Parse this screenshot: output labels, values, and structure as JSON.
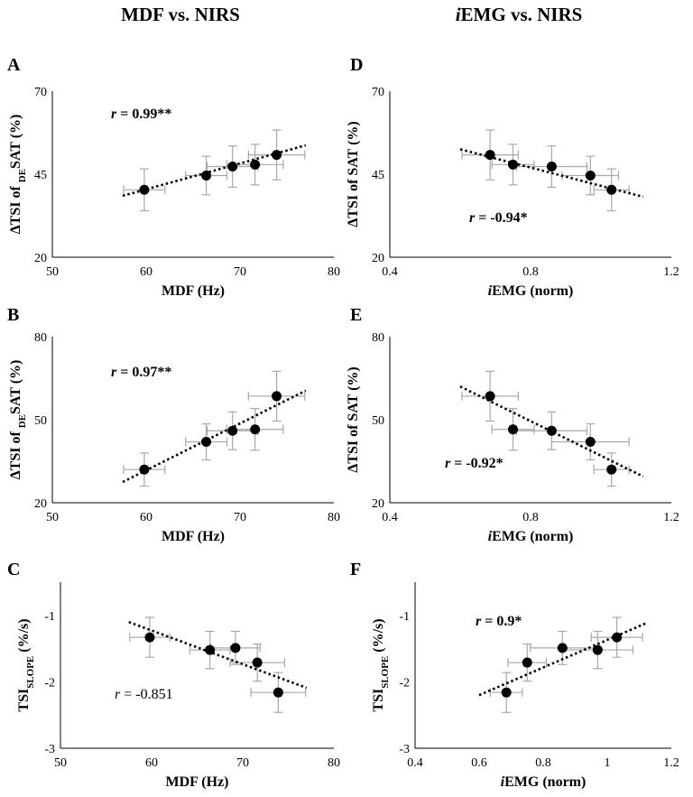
{
  "figure": {
    "col_titles": [
      {
        "text": "MDF vs. NIRS",
        "italic_prefix": ""
      },
      {
        "text": "EMG vs. NIRS",
        "italic_prefix": "i"
      }
    ]
  },
  "chart_data": [
    {
      "panel": "A",
      "type": "scatter",
      "x": [
        59.8,
        66.4,
        69.2,
        71.6,
        73.9
      ],
      "y": [
        40.3,
        44.6,
        47.3,
        47.9,
        50.8
      ],
      "xerr": [
        2.2,
        2.2,
        2.7,
        3.0,
        3.0
      ],
      "yerr": [
        6.3,
        5.8,
        6.2,
        6.1,
        7.5
      ],
      "xlim": [
        50,
        80
      ],
      "ylim": [
        20,
        70
      ],
      "xticks": [
        "50",
        "60",
        "70",
        "80"
      ],
      "yticks": [
        "20",
        "45",
        "70"
      ],
      "xlabel": {
        "italic_prefix": "",
        "text": "MDF (Hz)"
      },
      "ylabel": {
        "pre": "ΔTSI of ",
        "sub": "DE",
        "post": "SAT (%)"
      },
      "trend": {
        "x": [
          57.5,
          77
        ],
        "y": [
          38.5,
          53.7
        ]
      },
      "r": {
        "italic": "r",
        "text": " = 0.99**",
        "bold": true
      }
    },
    {
      "panel": "D",
      "type": "scatter",
      "x": [
        0.685,
        0.75,
        0.86,
        0.97,
        1.03
      ],
      "y": [
        50.8,
        47.9,
        47.3,
        44.6,
        40.3
      ],
      "xerr": [
        0.08,
        0.06,
        0.1,
        0.08,
        0.05
      ],
      "yerr": [
        7.5,
        6.1,
        6.2,
        5.8,
        6.3
      ],
      "xlim": [
        0.4,
        1.2
      ],
      "ylim": [
        20,
        70
      ],
      "xticks": [
        "0.4",
        "0.8",
        "1.2"
      ],
      "yticks": [
        "20",
        "45",
        "70"
      ],
      "xlabel": {
        "italic_prefix": "i",
        "text": "EMG (norm)"
      },
      "ylabel": {
        "pre": "ΔTSI of SAT (%)",
        "sub": "",
        "post": ""
      },
      "trend": {
        "x": [
          0.6,
          1.12
        ],
        "y": [
          52.5,
          38.2
        ]
      },
      "r": {
        "italic": "r",
        "text": " = -0.94*",
        "bold": true
      }
    },
    {
      "panel": "B",
      "type": "scatter",
      "x": [
        59.8,
        66.4,
        69.2,
        71.6,
        73.9
      ],
      "y": [
        32.0,
        42.0,
        46.0,
        46.5,
        58.5
      ],
      "xerr": [
        2.2,
        2.2,
        2.7,
        3.0,
        3.0
      ],
      "yerr": [
        6.0,
        6.5,
        6.8,
        7.5,
        9.0
      ],
      "xlim": [
        50,
        80
      ],
      "ylim": [
        20,
        80
      ],
      "xticks": [
        "50",
        "60",
        "70",
        "80"
      ],
      "yticks": [
        "20",
        "50",
        "80"
      ],
      "xlabel": {
        "italic_prefix": "",
        "text": "MDF (Hz)"
      },
      "ylabel": {
        "pre": "ΔTSI of ",
        "sub": "DE",
        "post": "SAT (%)"
      },
      "trend": {
        "x": [
          57.5,
          77
        ],
        "y": [
          27.5,
          60.5
        ]
      },
      "r": {
        "italic": "r",
        "text": " = 0.97**",
        "bold": true
      }
    },
    {
      "panel": "E",
      "type": "scatter",
      "x": [
        0.685,
        0.75,
        0.86,
        0.97,
        1.03
      ],
      "y": [
        58.5,
        46.5,
        46.0,
        42.0,
        32.0
      ],
      "xerr": [
        0.08,
        0.06,
        0.1,
        0.11,
        0.05
      ],
      "yerr": [
        9.0,
        7.5,
        6.8,
        6.5,
        6.0
      ],
      "xlim": [
        0.4,
        1.2
      ],
      "ylim": [
        20,
        80
      ],
      "xticks": [
        "0.4",
        "0.8",
        "1.2"
      ],
      "yticks": [
        "20",
        "50",
        "80"
      ],
      "xlabel": {
        "italic_prefix": "i",
        "text": "EMG (norm)"
      },
      "ylabel": {
        "pre": "ΔTSI of SAT (%)",
        "sub": "",
        "post": ""
      },
      "trend": {
        "x": [
          0.6,
          1.12
        ],
        "y": [
          62.0,
          29.5
        ]
      },
      "r": {
        "italic": "r",
        "text": " = -0.92*",
        "bold": true
      }
    },
    {
      "panel": "C",
      "type": "scatter",
      "x": [
        59.8,
        66.4,
        69.2,
        71.6,
        73.9
      ],
      "y": [
        -1.33,
        -1.52,
        -1.49,
        -1.71,
        -2.16
      ],
      "xerr": [
        2.2,
        2.2,
        2.7,
        3.0,
        3.0
      ],
      "yerr": [
        0.3,
        0.28,
        0.25,
        0.28,
        0.3
      ],
      "xlim": [
        50,
        80
      ],
      "ylim": [
        -3,
        -0.5
      ],
      "xticks": [
        "50",
        "60",
        "70",
        "80"
      ],
      "yticks": [
        "-3",
        "-2",
        "-1"
      ],
      "xlabel": {
        "italic_prefix": "",
        "text": "MDF (Hz)"
      },
      "ylabel": {
        "pre": "TSI",
        "sub": "SLOPE",
        "post": " (%/s)"
      },
      "trend": {
        "x": [
          57.5,
          77
        ],
        "y": [
          -1.1,
          -2.09
        ]
      },
      "r": {
        "italic": "r",
        "text": " = -0.851",
        "bold": false
      }
    },
    {
      "panel": "F",
      "type": "scatter",
      "x": [
        0.685,
        0.75,
        0.86,
        0.97,
        1.03
      ],
      "y": [
        -2.16,
        -1.71,
        -1.49,
        -1.52,
        -1.33
      ],
      "xerr": [
        0.05,
        0.06,
        0.1,
        0.11,
        0.08
      ],
      "yerr": [
        0.3,
        0.28,
        0.25,
        0.28,
        0.3
      ],
      "xlim": [
        0.4,
        1.2
      ],
      "ylim": [
        -3,
        -0.5
      ],
      "xticks": [
        "0.4",
        "0.6",
        "0.8",
        "1",
        "1.2"
      ],
      "yticks": [
        "-3",
        "-2",
        "-1"
      ],
      "xlabel": {
        "italic_prefix": "i",
        "text": "EMG (norm)"
      },
      "ylabel": {
        "pre": "TSI",
        "sub": "SLOPE",
        "post": " (%/s)"
      },
      "trend": {
        "x": [
          0.6,
          1.12
        ],
        "y": [
          -2.2,
          -1.12
        ]
      },
      "r": {
        "italic": "r",
        "text": " = 0.9*",
        "bold": true
      }
    }
  ]
}
